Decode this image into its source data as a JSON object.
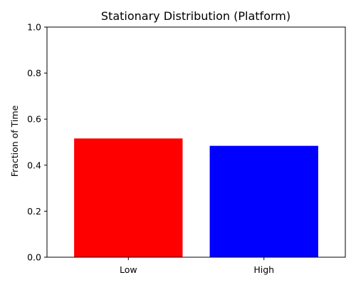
{
  "chart_data": {
    "type": "bar",
    "title": "Stationary Distribution (Platform)",
    "xlabel": "",
    "ylabel": "Fraction of Time",
    "categories": [
      "Low",
      "High"
    ],
    "values": [
      0.516,
      0.484
    ],
    "colors": [
      "#ff0000",
      "#0000ff"
    ],
    "ylim": [
      0,
      1.0
    ],
    "yticks": [
      "0.0",
      "0.2",
      "0.4",
      "0.6",
      "0.8",
      "1.0"
    ],
    "grid": false,
    "legend": "none"
  }
}
